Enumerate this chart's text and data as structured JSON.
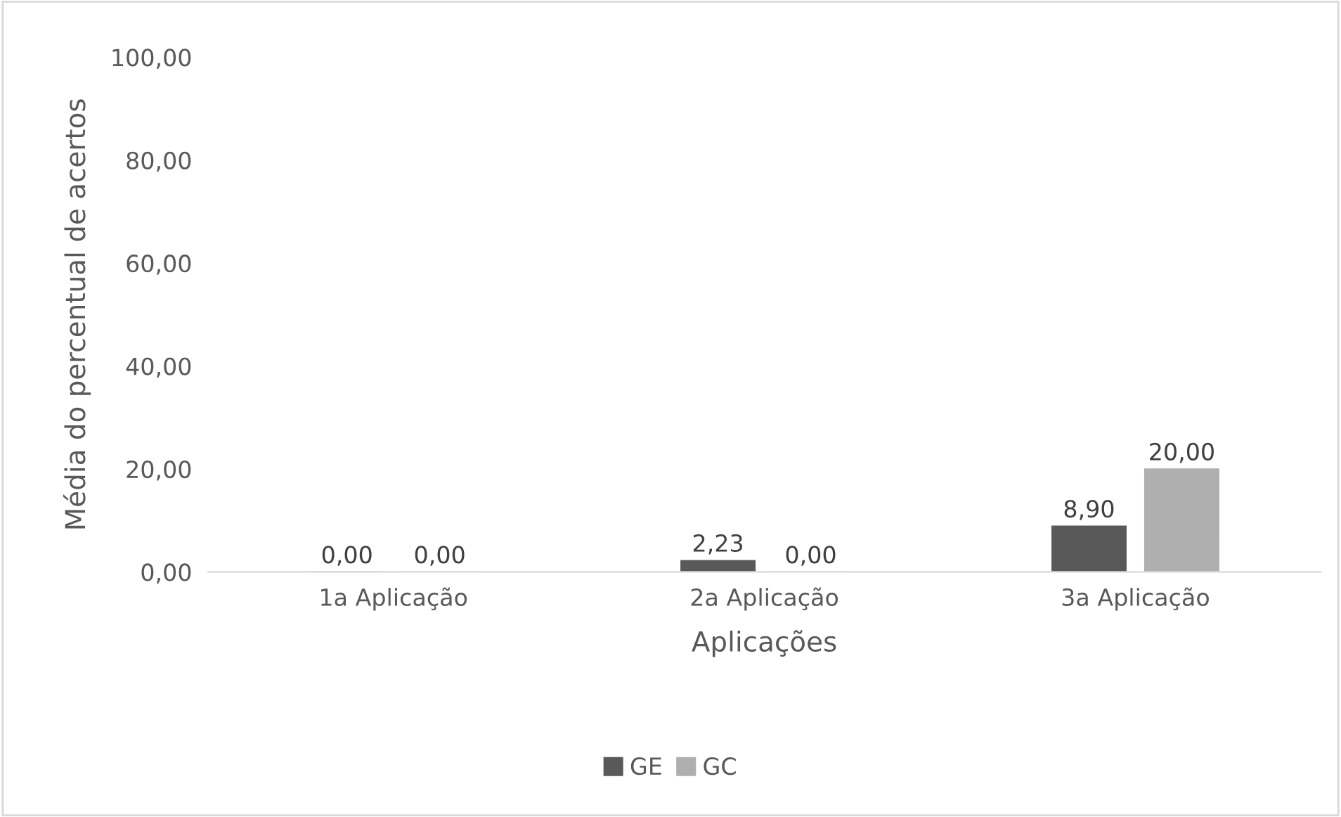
{
  "chart_data": {
    "type": "bar",
    "xlabel": "Aplicações",
    "ylabel": "Média do percentual de acertos",
    "categories": [
      "1a Aplicação",
      "2a Aplicação",
      "3a Aplicação"
    ],
    "series": [
      {
        "name": "GE",
        "color": "#595959",
        "values": [
          0,
          2.23,
          8.9
        ],
        "value_labels": [
          "0,00",
          "2,23",
          "8,90"
        ]
      },
      {
        "name": "GC",
        "color": "#afafaf",
        "values": [
          0,
          0,
          20
        ],
        "value_labels": [
          "0,00",
          "0,00",
          "20,00"
        ]
      }
    ],
    "ylim": [
      0,
      100
    ],
    "yticks": [
      {
        "value": 0,
        "label": "0,00"
      },
      {
        "value": 20,
        "label": "20,00"
      },
      {
        "value": 40,
        "label": "40,00"
      },
      {
        "value": 60,
        "label": "60,00"
      },
      {
        "value": 80,
        "label": "80,00"
      },
      {
        "value": 100,
        "label": "100,00"
      }
    ],
    "grid": false,
    "legend": "bottom"
  }
}
